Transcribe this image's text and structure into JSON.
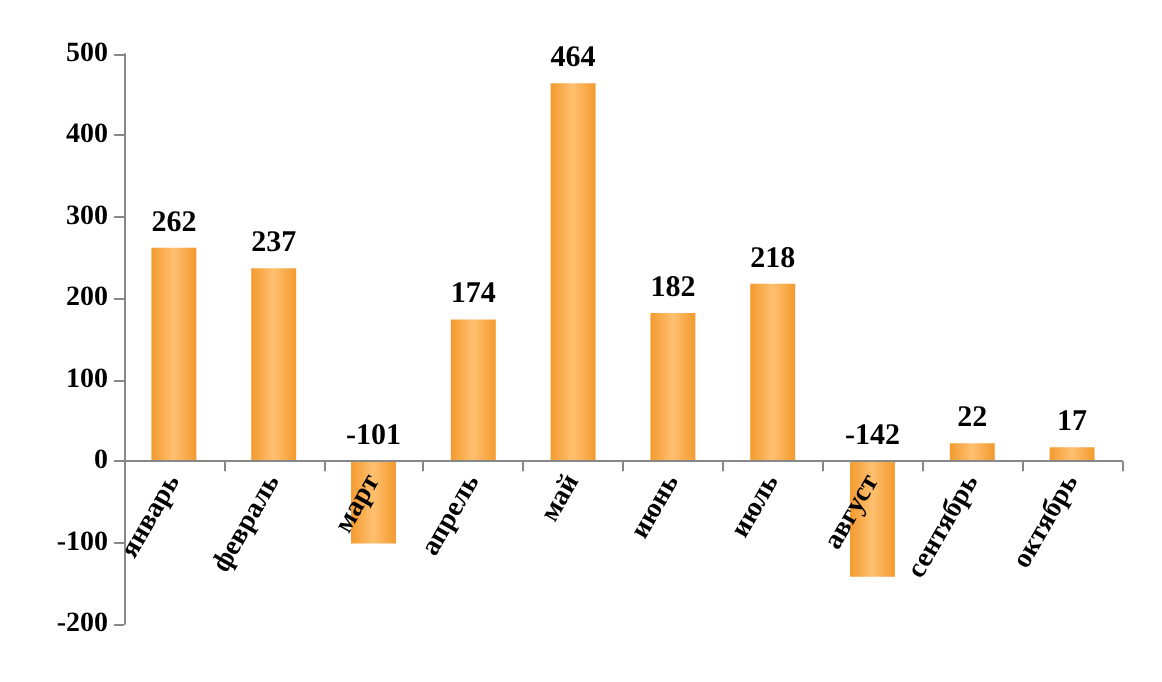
{
  "chart_data": {
    "type": "bar",
    "categories": [
      "январь",
      "февраль",
      "март",
      "апрель",
      "май",
      "июнь",
      "июль",
      "август",
      "сентябрь",
      "октябрь"
    ],
    "values": [
      262,
      237,
      -101,
      174,
      464,
      182,
      218,
      -142,
      22,
      17
    ],
    "color": "#f39a2e",
    "ylim": [
      -200,
      500
    ],
    "yticks": [
      -200,
      -100,
      0,
      100,
      200,
      300,
      400,
      500
    ],
    "data_labels": true
  }
}
